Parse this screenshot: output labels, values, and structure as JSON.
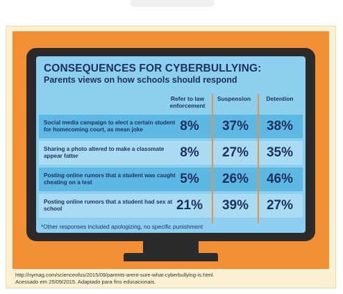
{
  "title": "CONSEQUENCES FOR CYBERBULLYING:",
  "subtitle": "Parents views on how schools should respond",
  "columns": [
    "Refer to law enforcement",
    "Suspension",
    "Detention"
  ],
  "rows": [
    {
      "label": "Social media campaign to elect a certain student for homecoming court, as mean joke",
      "values": [
        "8%",
        "37%",
        "38%"
      ]
    },
    {
      "label": "Sharing a photo altered to make a classmate appear fatter",
      "values": [
        "8%",
        "27%",
        "35%"
      ]
    },
    {
      "label": "Posting online rumors that a student was caught cheating on a test",
      "values": [
        "5%",
        "26%",
        "46%"
      ]
    },
    {
      "label": "Posting online rumors that a student had sex at school",
      "values": [
        "21%",
        "39%",
        "27%"
      ]
    }
  ],
  "footnote": "*Other responses included apologizing, no specific punishment",
  "source_line1": "http://nymag.com/scienceofus/2015/09/parents-arent-sure-what-cyberbullying-is.html.",
  "source_line2": "Acessado em 25/09/2015.  Adaptado para fins educacionais.",
  "colors": {
    "orange": "#f39035",
    "screen": "#8ccfee",
    "row_dark": "#5eb8e4",
    "row_light": "#a9dcf3",
    "monitor": "#2b2b2b",
    "text": "#1e2f5e",
    "frame": "#fbf1d2"
  }
}
